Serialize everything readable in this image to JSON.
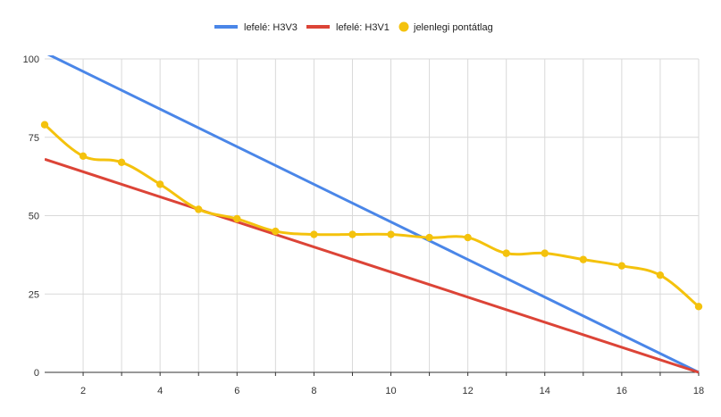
{
  "chart_data": {
    "type": "line",
    "title": "",
    "xlabel": "",
    "ylabel": "",
    "xlim": [
      1,
      18
    ],
    "ylim": [
      0,
      100
    ],
    "x_ticks": [
      2,
      4,
      6,
      8,
      10,
      12,
      14,
      16,
      18
    ],
    "y_ticks": [
      0,
      25,
      50,
      75,
      100
    ],
    "grid": true,
    "legend_position": "top",
    "series": [
      {
        "name": "lefelé: H3V3",
        "color": "#4a86e8",
        "marker": "none",
        "x": [
          1,
          18
        ],
        "y": [
          102,
          0
        ]
      },
      {
        "name": "lefelé: H3V1",
        "color": "#dc4437",
        "marker": "none",
        "x": [
          1,
          18
        ],
        "y": [
          68,
          0
        ]
      },
      {
        "name": "jelenlegi pontátlag",
        "color": "#f4c20d",
        "marker": "circle",
        "smooth": true,
        "x": [
          1,
          2,
          3,
          4,
          5,
          6,
          7,
          8,
          9,
          10,
          11,
          12,
          13,
          14,
          15,
          16,
          17,
          18
        ],
        "y": [
          79,
          69,
          67,
          60,
          52,
          49,
          45,
          44,
          44,
          44,
          43,
          43,
          38,
          38,
          36,
          34,
          31,
          21
        ]
      }
    ]
  }
}
